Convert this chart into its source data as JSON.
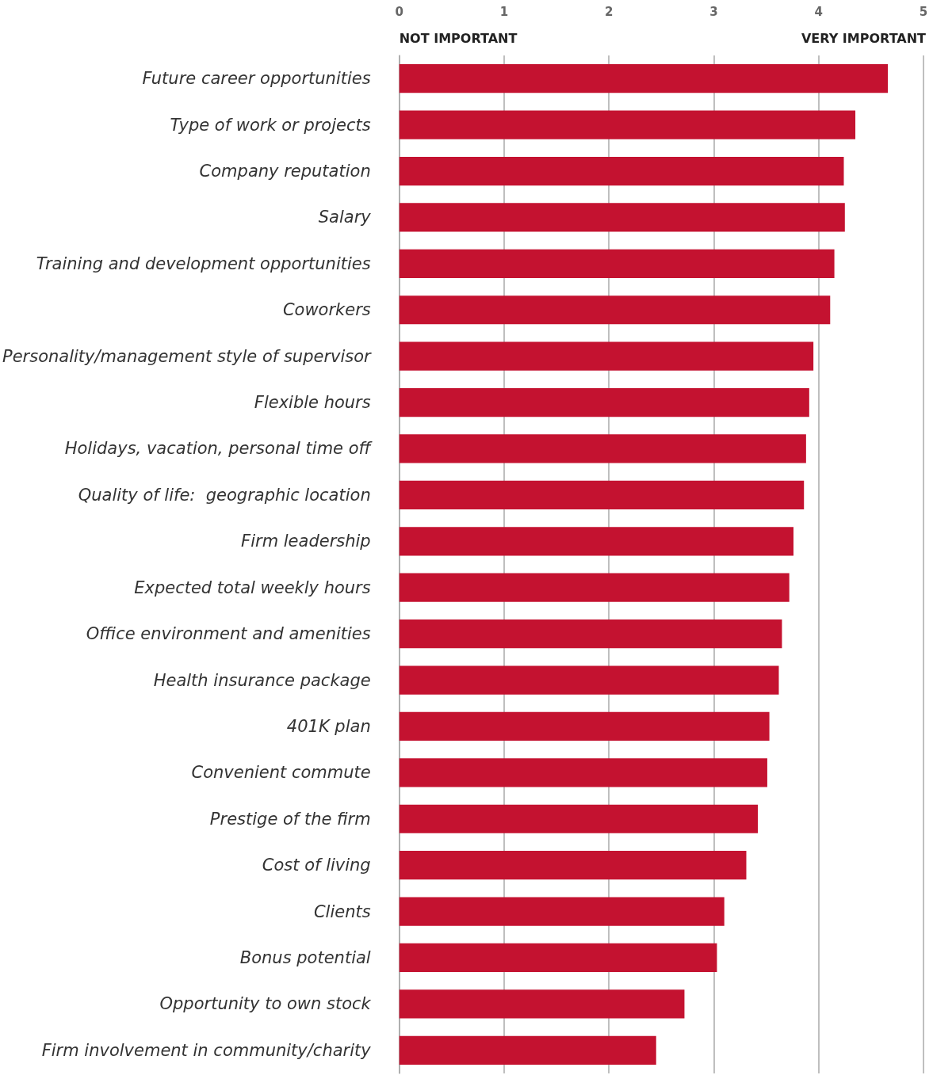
{
  "chart_data": {
    "type": "bar",
    "orientation": "horizontal",
    "categories": [
      "Future career opportunities",
      "Type of work or projects",
      "Company reputation",
      "Salary",
      "Training and development opportunities",
      "Coworkers",
      "Personality/management style of supervisor",
      "Flexible hours",
      "Holidays, vacation, personal time off",
      "Quality of life:  geographic location",
      "Firm leadership",
      "Expected total weekly hours",
      "Office environment and amenities",
      "Health insurance package",
      "401K plan",
      "Convenient commute",
      "Prestige of the firm",
      "Cost of living",
      "Clients",
      "Bonus potential",
      "Opportunity to own stock",
      "Firm involvement in community/charity"
    ],
    "values": [
      4.66,
      4.35,
      4.24,
      4.25,
      4.15,
      4.11,
      3.95,
      3.91,
      3.88,
      3.86,
      3.76,
      3.72,
      3.65,
      3.62,
      3.53,
      3.51,
      3.42,
      3.31,
      3.1,
      3.03,
      2.72,
      2.45
    ],
    "color": "#c41230",
    "xlim": [
      0,
      5
    ],
    "xticks": [
      0,
      1,
      2,
      3,
      4,
      5
    ],
    "grid": "x",
    "annotations": [
      "NOT IMPORTANT",
      "VERY IMPORTANT"
    ]
  }
}
